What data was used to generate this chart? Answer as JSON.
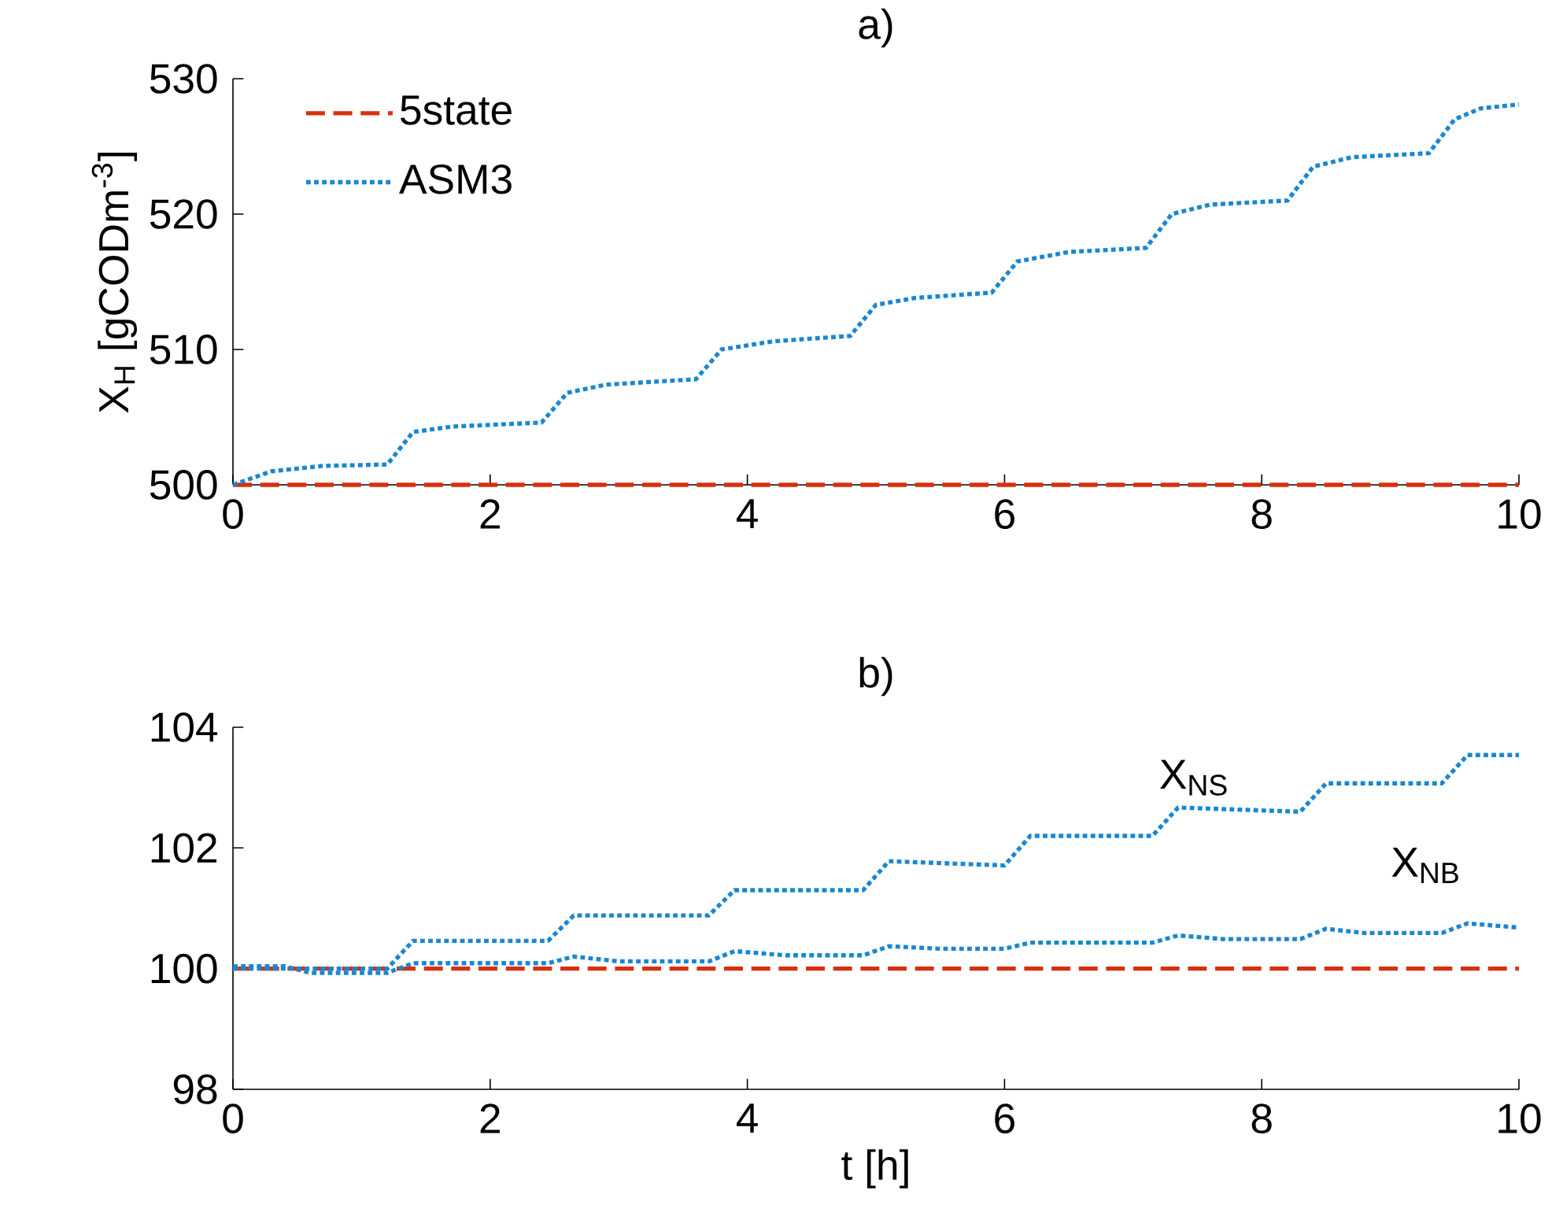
{
  "chart_data": [
    {
      "type": "line",
      "title": "a)",
      "ylabel": "X$_{H}$ [gCODm$^{-3}$]",
      "xlim": [
        0,
        10
      ],
      "ylim": [
        500,
        530
      ],
      "xticks": [
        0,
        2,
        4,
        6,
        8,
        10
      ],
      "yticks": [
        500,
        510,
        520,
        530
      ],
      "legend": "top left",
      "grid": false,
      "marker": "none",
      "series": [
        {
          "name": "5state",
          "color": "#d8300f",
          "line_style": "dashed",
          "x": [
            0,
            10
          ],
          "values": [
            500,
            500
          ]
        },
        {
          "name": "ASM3",
          "color": "#1a87d0",
          "line_style": "dotted",
          "x": [
            0,
            0.3,
            0.7,
            1.2,
            1.4,
            1.7,
            2.4,
            2.6,
            2.9,
            3.6,
            3.8,
            4.2,
            4.8,
            5.0,
            5.3,
            5.9,
            6.1,
            6.5,
            7.1,
            7.3,
            7.6,
            8.2,
            8.4,
            8.7,
            9.3,
            9.5,
            9.7,
            10
          ],
          "values": [
            500,
            501,
            501.4,
            501.5,
            503.9,
            504.3,
            504.6,
            506.8,
            507.4,
            507.8,
            510,
            510.6,
            511,
            513.3,
            513.8,
            514.2,
            516.5,
            517.2,
            517.5,
            520,
            520.7,
            521,
            523.5,
            524.2,
            524.5,
            527,
            527.8,
            528.1
          ]
        }
      ]
    },
    {
      "type": "line",
      "title": "b)",
      "xlabel": "t [h]",
      "xlim": [
        0,
        10
      ],
      "ylim": [
        98,
        104
      ],
      "xticks": [
        0,
        2,
        4,
        6,
        8,
        10
      ],
      "yticks": [
        98,
        100,
        102,
        104
      ],
      "grid": false,
      "marker": "none",
      "series": [
        {
          "color": "#d8300f",
          "line_style": "dashed",
          "x": [
            0,
            10
          ],
          "values": [
            100,
            100
          ]
        },
        {
          "name": "X$_{NS}$",
          "color": "#1a87d0",
          "line_style": "dotted",
          "x": [
            0,
            1.2,
            1.4,
            2.45,
            2.65,
            3.7,
            3.9,
            4.9,
            5.1,
            6.0,
            6.2,
            7.15,
            7.35,
            8.3,
            8.5,
            9.4,
            9.6,
            10
          ],
          "values": [
            100,
            100,
            100.46,
            100.46,
            100.88,
            100.88,
            101.3,
            101.3,
            101.78,
            101.71,
            102.2,
            102.2,
            102.67,
            102.6,
            103.07,
            103.07,
            103.54,
            103.54
          ]
        },
        {
          "name": "X$_{NB}$",
          "color": "#1a87d0",
          "line_style": "dotted",
          "x": [
            0,
            0.4,
            0.6,
            1.2,
            1.4,
            2.45,
            2.65,
            3.0,
            3.7,
            3.9,
            4.3,
            4.9,
            5.1,
            5.5,
            6.0,
            6.2,
            7.15,
            7.35,
            7.7,
            8.3,
            8.5,
            8.8,
            9.4,
            9.6,
            10
          ],
          "values": [
            100.04,
            100.04,
            99.93,
            99.93,
            100.09,
            100.09,
            100.2,
            100.12,
            100.12,
            100.29,
            100.22,
            100.22,
            100.37,
            100.33,
            100.33,
            100.43,
            100.43,
            100.55,
            100.49,
            100.49,
            100.66,
            100.59,
            100.59,
            100.75,
            100.68
          ]
        }
      ]
    }
  ]
}
